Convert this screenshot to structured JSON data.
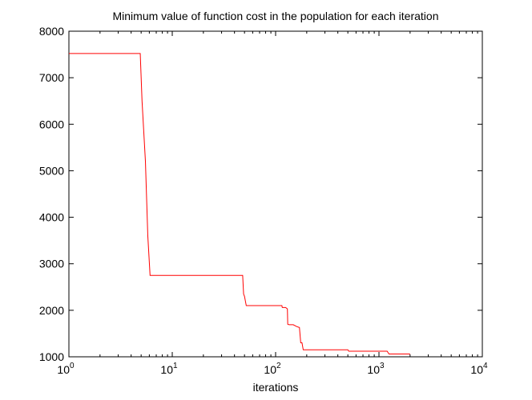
{
  "chart_data": {
    "type": "line",
    "title": "Minimum value of function cost in the population for each iteration",
    "xlabel": "iterations",
    "ylabel": "",
    "xscale": "log",
    "xlim": [
      1,
      10000
    ],
    "ylim": [
      1000,
      8000
    ],
    "grid": false,
    "legend": "none",
    "x_ticks": [
      1,
      10,
      100,
      1000,
      10000
    ],
    "x_tick_labels": [
      {
        "base": "10",
        "exp": "0"
      },
      {
        "base": "10",
        "exp": "1"
      },
      {
        "base": "10",
        "exp": "2"
      },
      {
        "base": "10",
        "exp": "3"
      },
      {
        "base": "10",
        "exp": "4"
      }
    ],
    "y_ticks": [
      1000,
      2000,
      3000,
      4000,
      5000,
      6000,
      7000,
      8000
    ],
    "y_tick_labels": [
      "1000",
      "2000",
      "3000",
      "4000",
      "5000",
      "6000",
      "7000",
      "8000"
    ],
    "series": [
      {
        "color": "#ff0000",
        "x": [
          1,
          4.9,
          5.1,
          5.5,
          5.8,
          6.1,
          48,
          49,
          50,
          52,
          115,
          116,
          125,
          130,
          131,
          135,
          148,
          160,
          170,
          175,
          180,
          185,
          500,
          510,
          1200,
          1250,
          2000
        ],
        "y": [
          7520,
          7520,
          6500,
          5200,
          3600,
          2750,
          2750,
          2350,
          2300,
          2100,
          2100,
          2060,
          2060,
          2030,
          1700,
          1690,
          1690,
          1650,
          1630,
          1300,
          1300,
          1150,
          1150,
          1120,
          1120,
          1060,
          1060
        ]
      }
    ]
  },
  "colors": {
    "line": "#ff0000",
    "axes": "#000000",
    "background": "#ffffff"
  }
}
